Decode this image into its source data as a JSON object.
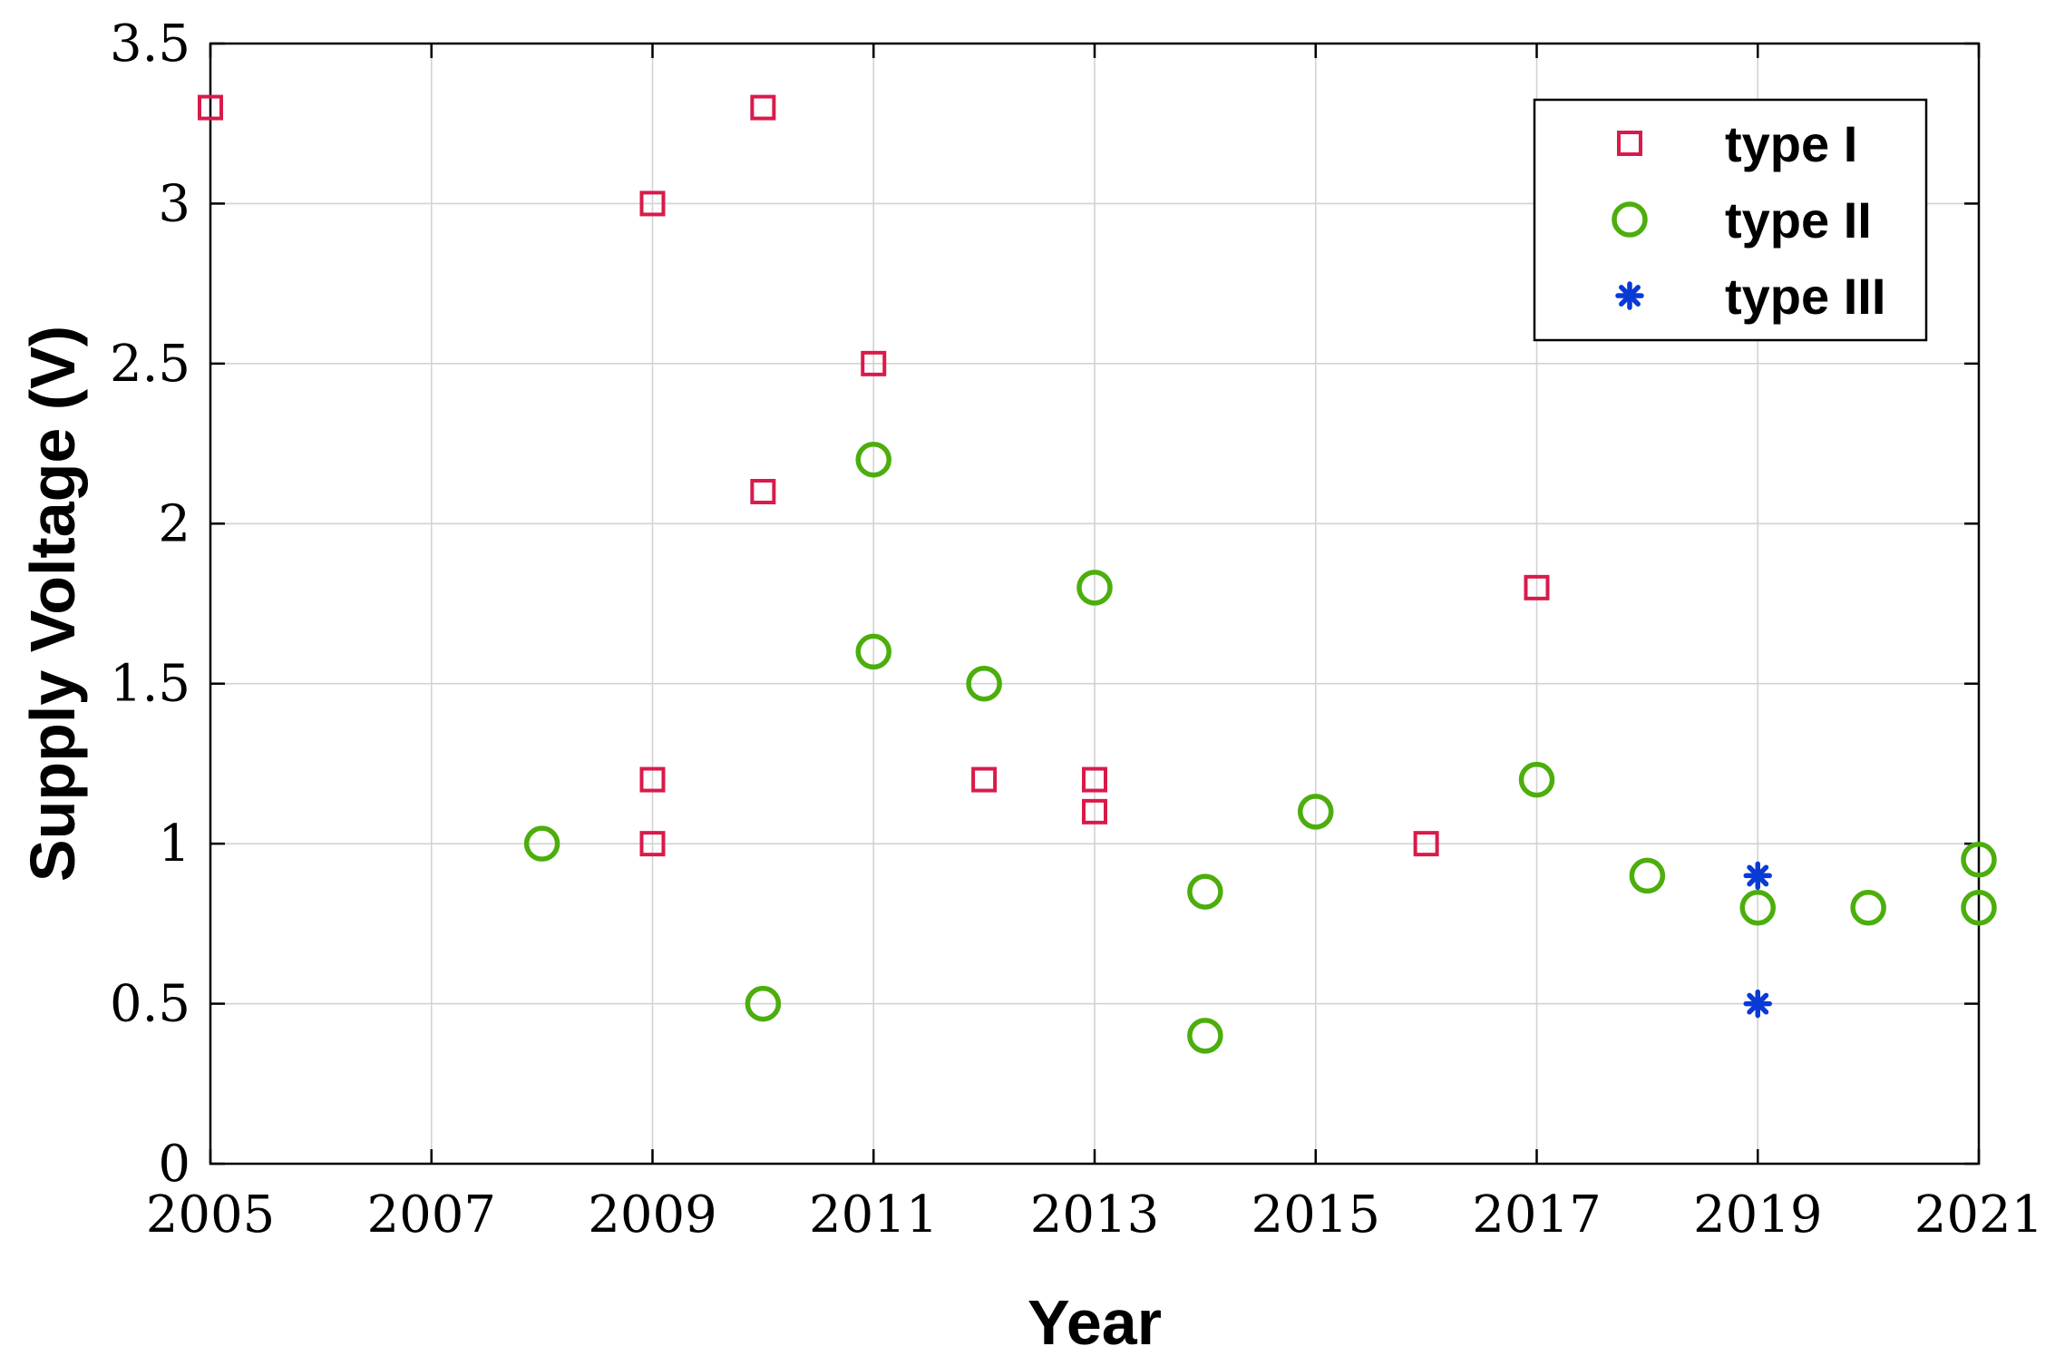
{
  "chart_data": {
    "type": "scatter",
    "title": "",
    "xlabel": "Year",
    "ylabel": "Supply Voltage (V)",
    "xlim": [
      2005,
      2021
    ],
    "ylim": [
      0,
      3.5
    ],
    "xticks": [
      2005,
      2007,
      2009,
      2011,
      2013,
      2015,
      2017,
      2019,
      2021
    ],
    "xtick_labels": [
      "2005",
      "2007",
      "2009",
      "2011",
      "2013",
      "2015",
      "2017",
      "2019",
      "2021"
    ],
    "yticks": [
      0,
      0.5,
      1,
      1.5,
      2,
      2.5,
      3,
      3.5
    ],
    "ytick_labels": [
      "0",
      "0.5",
      "1",
      "1.5",
      "2",
      "2.5",
      "3",
      "3.5"
    ],
    "grid": true,
    "legend_position": "top-right",
    "series": [
      {
        "name": "type I",
        "marker": "square",
        "color": "#d81b4a",
        "points": [
          [
            2005,
            3.3
          ],
          [
            2009,
            3.0
          ],
          [
            2009,
            1.2
          ],
          [
            2009,
            1.0
          ],
          [
            2010,
            3.3
          ],
          [
            2010,
            2.1
          ],
          [
            2011,
            2.5
          ],
          [
            2012,
            1.2
          ],
          [
            2013,
            1.2
          ],
          [
            2013,
            1.1
          ],
          [
            2016,
            1.0
          ],
          [
            2017,
            1.8
          ]
        ]
      },
      {
        "name": "type II",
        "marker": "circle",
        "color": "#4cae0c",
        "points": [
          [
            2008,
            1.0
          ],
          [
            2010,
            0.5
          ],
          [
            2011,
            2.2
          ],
          [
            2011,
            1.6
          ],
          [
            2012,
            1.5
          ],
          [
            2013,
            1.8
          ],
          [
            2014,
            0.85
          ],
          [
            2014,
            0.4
          ],
          [
            2015,
            1.1
          ],
          [
            2017,
            1.2
          ],
          [
            2018,
            0.9
          ],
          [
            2019,
            0.8
          ],
          [
            2020,
            0.8
          ],
          [
            2021,
            0.95
          ],
          [
            2021,
            0.8
          ]
        ]
      },
      {
        "name": "type III",
        "marker": "asterisk",
        "color": "#0a3ad6",
        "points": [
          [
            2019,
            0.9
          ],
          [
            2019,
            0.5
          ]
        ]
      }
    ]
  }
}
